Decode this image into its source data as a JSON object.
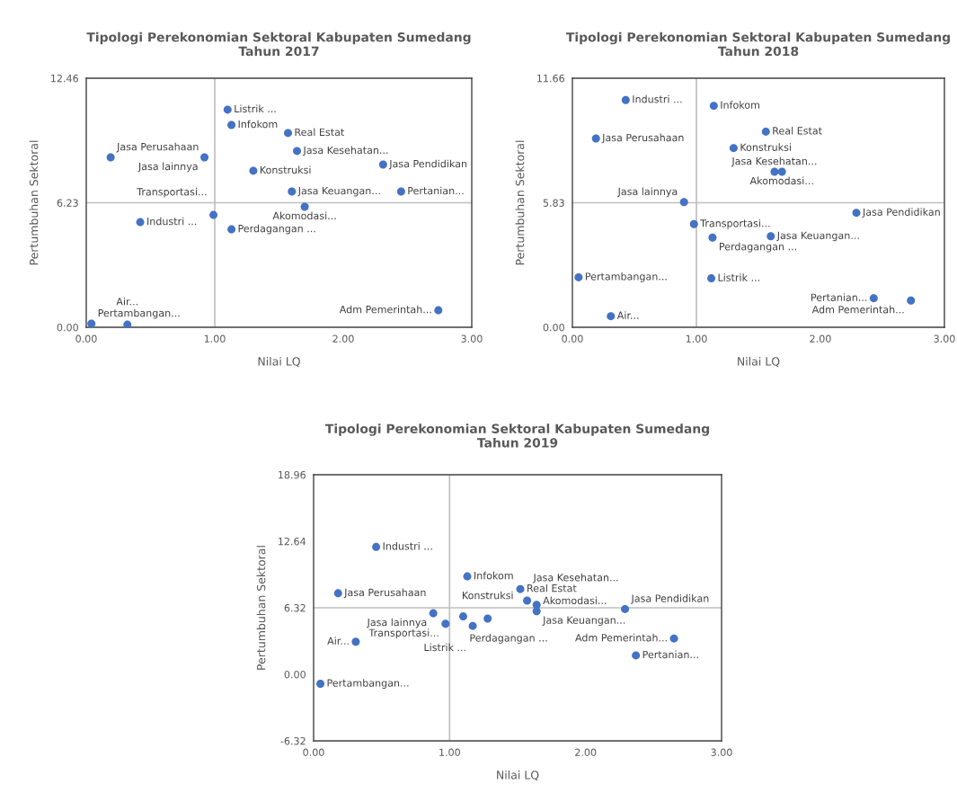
{
  "chart_data": [
    {
      "type": "scatter",
      "title": "Tipologi Perekonomian Sektoral Kabupaten Sumedang\nTahun 2017",
      "xlabel": "Nilai LQ",
      "ylabel": "Pertumbuhan Sektoral",
      "color": "#4472c4",
      "marker": "circle",
      "grid": false,
      "legend": false,
      "xlim": [
        0,
        3
      ],
      "ylim": [
        0,
        12.46
      ],
      "xticks": [
        {
          "value": 0,
          "label": "0.00"
        },
        {
          "value": 1,
          "label": "1.00"
        },
        {
          "value": 2,
          "label": "2.00"
        },
        {
          "value": 3,
          "label": "3.00"
        }
      ],
      "yticks": [
        {
          "value": 0,
          "label": "0.00"
        },
        {
          "value": 6.23,
          "label": "6.23"
        },
        {
          "value": 12.46,
          "label": "12.46"
        }
      ],
      "ref_lines": [
        {
          "axis": "x",
          "value": 1,
          "color": "#bfbfbf"
        },
        {
          "axis": "y",
          "value": 6.23,
          "color": "#bfbfbf"
        }
      ],
      "x": [
        1.1,
        1.13,
        1.57,
        1.64,
        2.31,
        0.19,
        0.92,
        1.3,
        1.6,
        2.45,
        1.7,
        0.99,
        0.42,
        1.13,
        2.74,
        0.04,
        0.32
      ],
      "values": [
        10.89,
        10.12,
        9.72,
        8.82,
        8.14,
        8.5,
        8.5,
        7.83,
        6.79,
        6.79,
        6.03,
        5.62,
        5.26,
        4.9,
        0.85,
        0.18,
        0.13
      ],
      "annotations": [
        {
          "text": "Listrik ...",
          "x": 1.1,
          "y": 10.89
        },
        {
          "text": "Infokom",
          "x": 1.13,
          "y": 10.12
        },
        {
          "text": "Real Estat",
          "x": 1.57,
          "y": 9.72
        },
        {
          "text": "Jasa Kesehatan...",
          "x": 1.64,
          "y": 8.82
        },
        {
          "text": "Jasa Pendidikan",
          "x": 2.31,
          "y": 8.14
        },
        {
          "text": "Jasa Perusahaan",
          "x": 0.19,
          "y": 8.5
        },
        {
          "text": "Jasa lainnya",
          "x": 0.92,
          "y": 8.5
        },
        {
          "text": "Konstruksi",
          "x": 1.3,
          "y": 7.83
        },
        {
          "text": "Jasa Keuangan...",
          "x": 1.6,
          "y": 6.79
        },
        {
          "text": "Pertanian...",
          "x": 2.45,
          "y": 6.79
        },
        {
          "text": "Akomodasi...",
          "x": 1.7,
          "y": 6.03
        },
        {
          "text": "Transportasi...",
          "x": 0.99,
          "y": 5.62
        },
        {
          "text": "Industri ...",
          "x": 0.42,
          "y": 5.26
        },
        {
          "text": "Perdagangan ...",
          "x": 1.13,
          "y": 4.9
        },
        {
          "text": "Adm Pemerintah...",
          "x": 2.74,
          "y": 0.85
        },
        {
          "text": "Pertambangan...",
          "x": 0.04,
          "y": 0.18
        },
        {
          "text": "Air...",
          "x": 0.32,
          "y": 0.13
        }
      ]
    },
    {
      "type": "scatter",
      "title": "Tipologi Perekonomian Sektoral Kabupaten Sumedang\nTahun 2018",
      "xlabel": "Nilai LQ",
      "ylabel": "Pertumbuhan Sektoral",
      "color": "#4472c4",
      "marker": "circle",
      "grid": false,
      "legend": false,
      "xlim": [
        0,
        3
      ],
      "ylim": [
        0,
        11.66
      ],
      "xticks": [
        {
          "value": 0,
          "label": "0.00"
        },
        {
          "value": 1,
          "label": "1.00"
        },
        {
          "value": 2,
          "label": "2.00"
        },
        {
          "value": 3,
          "label": "3.00"
        }
      ],
      "yticks": [
        {
          "value": 0,
          "label": "0.00"
        },
        {
          "value": 5.83,
          "label": "5.83"
        },
        {
          "value": 11.66,
          "label": "11.66"
        }
      ],
      "ref_lines": [
        {
          "axis": "x",
          "value": 1,
          "color": "#bfbfbf"
        },
        {
          "axis": "y",
          "value": 5.83,
          "color": "#bfbfbf"
        }
      ],
      "x": [
        0.43,
        1.14,
        0.19,
        1.56,
        1.3,
        1.63,
        1.69,
        0.9,
        2.29,
        0.98,
        1.13,
        1.6,
        0.05,
        1.12,
        2.43,
        2.73,
        0.31
      ],
      "values": [
        10.64,
        10.37,
        8.84,
        9.16,
        8.39,
        7.28,
        7.28,
        5.86,
        5.36,
        4.83,
        4.2,
        4.26,
        2.34,
        2.29,
        1.36,
        1.25,
        0.52
      ],
      "annotations": [
        {
          "text": "Industri ...",
          "x": 0.43,
          "y": 10.64
        },
        {
          "text": "Infokom",
          "x": 1.14,
          "y": 10.37
        },
        {
          "text": "Jasa Perusahaan",
          "x": 0.19,
          "y": 8.84
        },
        {
          "text": "Real Estat",
          "x": 1.56,
          "y": 9.16
        },
        {
          "text": "Konstruksi",
          "x": 1.3,
          "y": 8.39
        },
        {
          "text": "Jasa Kesehatan...",
          "x": 1.63,
          "y": 7.28
        },
        {
          "text": "Akomodasi...",
          "x": 1.69,
          "y": 7.28
        },
        {
          "text": "Jasa lainnya",
          "x": 0.9,
          "y": 5.86
        },
        {
          "text": "Jasa Pendidikan",
          "x": 2.29,
          "y": 5.36
        },
        {
          "text": "Transportasi...",
          "x": 0.98,
          "y": 4.83
        },
        {
          "text": "Perdagangan ...",
          "x": 1.13,
          "y": 4.2
        },
        {
          "text": "Jasa Keuangan...",
          "x": 1.6,
          "y": 4.26
        },
        {
          "text": "Pertambangan...",
          "x": 0.05,
          "y": 2.34
        },
        {
          "text": "Listrik ...",
          "x": 1.12,
          "y": 2.29
        },
        {
          "text": "Pertanian...",
          "x": 2.43,
          "y": 1.36
        },
        {
          "text": "Adm Pemerintah...",
          "x": 2.73,
          "y": 1.25
        },
        {
          "text": "Air...",
          "x": 0.31,
          "y": 0.52
        }
      ]
    },
    {
      "type": "scatter",
      "title": "Tipologi Perekonomian Sektoral Kabupaten Sumedang\nTahun 2019",
      "xlabel": "Nilai LQ",
      "ylabel": "Pertumbuhan Sektoral",
      "color": "#4472c4",
      "marker": "circle",
      "grid": false,
      "legend": false,
      "xlim": [
        0,
        3
      ],
      "ylim": [
        -6.32,
        18.96
      ],
      "xticks": [
        {
          "value": 0,
          "label": "0.00"
        },
        {
          "value": 1,
          "label": "1.00"
        },
        {
          "value": 2,
          "label": "2.00"
        },
        {
          "value": 3,
          "label": "3.00"
        }
      ],
      "yticks": [
        {
          "value": -6.32,
          "label": "-6.32"
        },
        {
          "value": 0,
          "label": "0.00"
        },
        {
          "value": 6.32,
          "label": "6.32"
        },
        {
          "value": 12.64,
          "label": "12.64"
        },
        {
          "value": 18.96,
          "label": "18.96"
        }
      ],
      "ref_lines": [
        {
          "axis": "x",
          "value": 1,
          "color": "#bfbfbf"
        },
        {
          "axis": "y",
          "value": 6.32,
          "color": "#bfbfbf"
        }
      ],
      "x": [
        0.46,
        1.13,
        0.18,
        1.52,
        1.57,
        1.64,
        1.64,
        2.29,
        0.88,
        1.1,
        1.28,
        0.97,
        1.17,
        2.65,
        0.31,
        2.37,
        0.05
      ],
      "values": [
        12.1,
        9.3,
        7.7,
        8.1,
        7.0,
        6.6,
        6.0,
        6.2,
        5.8,
        5.5,
        5.3,
        4.8,
        4.6,
        3.4,
        3.1,
        1.8,
        -0.9
      ],
      "annotations": [
        {
          "text": "Industri ...",
          "x": 0.46,
          "y": 12.1
        },
        {
          "text": "Infokom",
          "x": 1.13,
          "y": 9.3
        },
        {
          "text": "Jasa Perusahaan",
          "x": 0.18,
          "y": 7.7
        },
        {
          "text": "Real Estat",
          "x": 1.52,
          "y": 8.1
        },
        {
          "text": "Jasa Kesehatan...",
          "x": 1.57,
          "y": 7.0
        },
        {
          "text": "Jasa Keuangan...",
          "x": 1.64,
          "y": 6.6
        },
        {
          "text": "Akomodasi...",
          "x": 1.64,
          "y": 6.0
        },
        {
          "text": "Jasa Pendidikan",
          "x": 2.29,
          "y": 6.2
        },
        {
          "text": "Jasa lainnya",
          "x": 0.88,
          "y": 5.8
        },
        {
          "text": "Perdagangan ...",
          "x": 1.1,
          "y": 5.5
        },
        {
          "text": "Konstruksi",
          "x": 1.28,
          "y": 5.3
        },
        {
          "text": "Transportasi...",
          "x": 0.97,
          "y": 4.8
        },
        {
          "text": "Listrik ...",
          "x": 1.17,
          "y": 4.6
        },
        {
          "text": "Adm Pemerintah...",
          "x": 2.65,
          "y": 3.4
        },
        {
          "text": "Air...",
          "x": 0.31,
          "y": 3.1
        },
        {
          "text": "Pertanian...",
          "x": 2.37,
          "y": 1.8
        },
        {
          "text": "Pertambangan...",
          "x": 0.05,
          "y": -0.9
        }
      ]
    }
  ]
}
